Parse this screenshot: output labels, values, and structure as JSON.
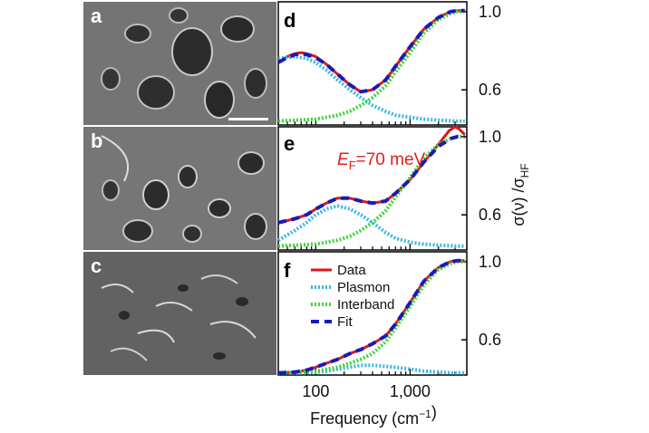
{
  "figure": {
    "sem_panels": [
      {
        "letter": "a",
        "has_scale_bar": true
      },
      {
        "letter": "b",
        "has_scale_bar": false
      },
      {
        "letter": "c",
        "has_scale_bar": false
      }
    ],
    "xlabel": "Frequency (cm−1)",
    "ylabel": "σ(ν) /σHF",
    "x_ticks": [
      "100",
      "1,000"
    ],
    "y_ticks": [
      "0.6",
      "1.0"
    ],
    "annotation": {
      "prefix": "E",
      "subscript": "F",
      "suffix": "=70 meV"
    },
    "legend": [
      "Data",
      "Plasmon",
      "Interband",
      "Fit"
    ]
  },
  "colors": {
    "data": "#d7191c",
    "plasmon": "#3ab6e6",
    "interband": "#3fd43b",
    "fit": "#1a1ab8"
  },
  "chart_data": [
    {
      "type": "line",
      "panel": "d",
      "xscale": "log",
      "xlim": [
        40,
        4000
      ],
      "ylim": [
        0.42,
        1.05
      ],
      "series": [
        {
          "name": "Data",
          "x": [
            40,
            50,
            60,
            70,
            80,
            100,
            130,
            170,
            230,
            300,
            400,
            550,
            700,
            1000,
            1400,
            2000,
            2700,
            3200,
            3800
          ],
          "y": [
            0.74,
            0.77,
            0.785,
            0.79,
            0.785,
            0.77,
            0.73,
            0.68,
            0.625,
            0.59,
            0.6,
            0.65,
            0.72,
            0.82,
            0.91,
            0.97,
            1.0,
            1.005,
            1.005
          ]
        },
        {
          "name": "Plasmon",
          "x": [
            40,
            60,
            80,
            100,
            130,
            170,
            230,
            300,
            400,
            550,
            700,
            1000,
            1400,
            2000,
            3000,
            3800
          ],
          "y": [
            0.76,
            0.77,
            0.76,
            0.74,
            0.7,
            0.65,
            0.6,
            0.56,
            0.52,
            0.49,
            0.47,
            0.46,
            0.45,
            0.445,
            0.44,
            0.44
          ]
        },
        {
          "name": "Interband",
          "x": [
            40,
            100,
            170,
            230,
            300,
            400,
            550,
            700,
            1000,
            1400,
            2000,
            2700,
            3200,
            3800
          ],
          "y": [
            0.44,
            0.45,
            0.47,
            0.49,
            0.52,
            0.56,
            0.62,
            0.69,
            0.79,
            0.89,
            0.96,
            0.99,
            1.0,
            1.0
          ]
        },
        {
          "name": "Fit",
          "x": [
            40,
            50,
            60,
            70,
            80,
            100,
            130,
            170,
            230,
            300,
            400,
            550,
            700,
            1000,
            1400,
            2000,
            2700,
            3200,
            3800
          ],
          "y": [
            0.74,
            0.765,
            0.78,
            0.785,
            0.78,
            0.765,
            0.73,
            0.68,
            0.625,
            0.59,
            0.6,
            0.65,
            0.72,
            0.82,
            0.91,
            0.97,
            1.0,
            1.005,
            1.005
          ]
        }
      ]
    },
    {
      "type": "line",
      "panel": "e",
      "xscale": "log",
      "xlim": [
        40,
        4000
      ],
      "ylim": [
        0.42,
        1.05
      ],
      "series": [
        {
          "name": "Data",
          "x": [
            40,
            60,
            80,
            100,
            130,
            170,
            230,
            300,
            400,
            550,
            700,
            1000,
            1400,
            2000,
            2600,
            3000,
            3300,
            3800
          ],
          "y": [
            0.56,
            0.58,
            0.6,
            0.63,
            0.66,
            0.685,
            0.685,
            0.67,
            0.66,
            0.67,
            0.71,
            0.78,
            0.87,
            0.96,
            1.03,
            1.05,
            1.04,
            1.01
          ]
        },
        {
          "name": "Plasmon",
          "x": [
            40,
            60,
            80,
            100,
            130,
            170,
            230,
            300,
            400,
            550,
            700,
            1000,
            1400,
            2000,
            3000,
            3800
          ],
          "y": [
            0.47,
            0.52,
            0.56,
            0.6,
            0.63,
            0.645,
            0.63,
            0.6,
            0.56,
            0.51,
            0.48,
            0.46,
            0.45,
            0.445,
            0.44,
            0.44
          ]
        },
        {
          "name": "Interband",
          "x": [
            40,
            100,
            170,
            230,
            300,
            400,
            550,
            700,
            1000,
            1400,
            2000,
            2700,
            3200,
            3800
          ],
          "y": [
            0.44,
            0.45,
            0.47,
            0.49,
            0.52,
            0.56,
            0.62,
            0.69,
            0.79,
            0.89,
            0.96,
            0.99,
            1.0,
            1.0
          ]
        },
        {
          "name": "Fit",
          "x": [
            40,
            60,
            80,
            100,
            130,
            170,
            230,
            300,
            400,
            550,
            700,
            1000,
            1400,
            2000,
            2700,
            3200,
            3800
          ],
          "y": [
            0.56,
            0.58,
            0.6,
            0.63,
            0.66,
            0.685,
            0.685,
            0.67,
            0.66,
            0.67,
            0.71,
            0.78,
            0.87,
            0.95,
            0.99,
            1.0,
            1.0
          ]
        }
      ]
    },
    {
      "type": "line",
      "panel": "f",
      "xscale": "log",
      "xlim": [
        40,
        4000
      ],
      "ylim": [
        0.42,
        1.05
      ],
      "series": [
        {
          "name": "Data",
          "x": [
            40,
            60,
            80,
            100,
            130,
            170,
            230,
            300,
            400,
            550,
            700,
            1000,
            1400,
            2000,
            2700,
            3200,
            3800
          ],
          "y": [
            0.43,
            0.435,
            0.445,
            0.46,
            0.48,
            0.5,
            0.53,
            0.55,
            0.58,
            0.62,
            0.68,
            0.79,
            0.9,
            0.97,
            1.0,
            1.005,
            1.005
          ]
        },
        {
          "name": "Plasmon",
          "x": [
            40,
            80,
            130,
            170,
            230,
            300,
            400,
            550,
            700,
            1000,
            1400,
            2000,
            3000,
            3800
          ],
          "y": [
            0.43,
            0.43,
            0.44,
            0.45,
            0.46,
            0.47,
            0.47,
            0.465,
            0.46,
            0.45,
            0.44,
            0.435,
            0.43,
            0.43
          ]
        },
        {
          "name": "Interband",
          "x": [
            40,
            100,
            170,
            230,
            300,
            400,
            550,
            700,
            1000,
            1400,
            2000,
            2700,
            3200,
            3800
          ],
          "y": [
            0.43,
            0.44,
            0.46,
            0.48,
            0.5,
            0.53,
            0.59,
            0.66,
            0.77,
            0.88,
            0.96,
            0.99,
            1.0,
            1.0
          ]
        },
        {
          "name": "Fit",
          "x": [
            40,
            60,
            80,
            100,
            130,
            170,
            230,
            300,
            400,
            550,
            700,
            1000,
            1400,
            2000,
            2700,
            3200,
            3800
          ],
          "y": [
            0.43,
            0.435,
            0.445,
            0.46,
            0.48,
            0.5,
            0.53,
            0.55,
            0.58,
            0.62,
            0.68,
            0.79,
            0.9,
            0.97,
            1.0,
            1.005,
            1.005
          ]
        }
      ]
    }
  ]
}
